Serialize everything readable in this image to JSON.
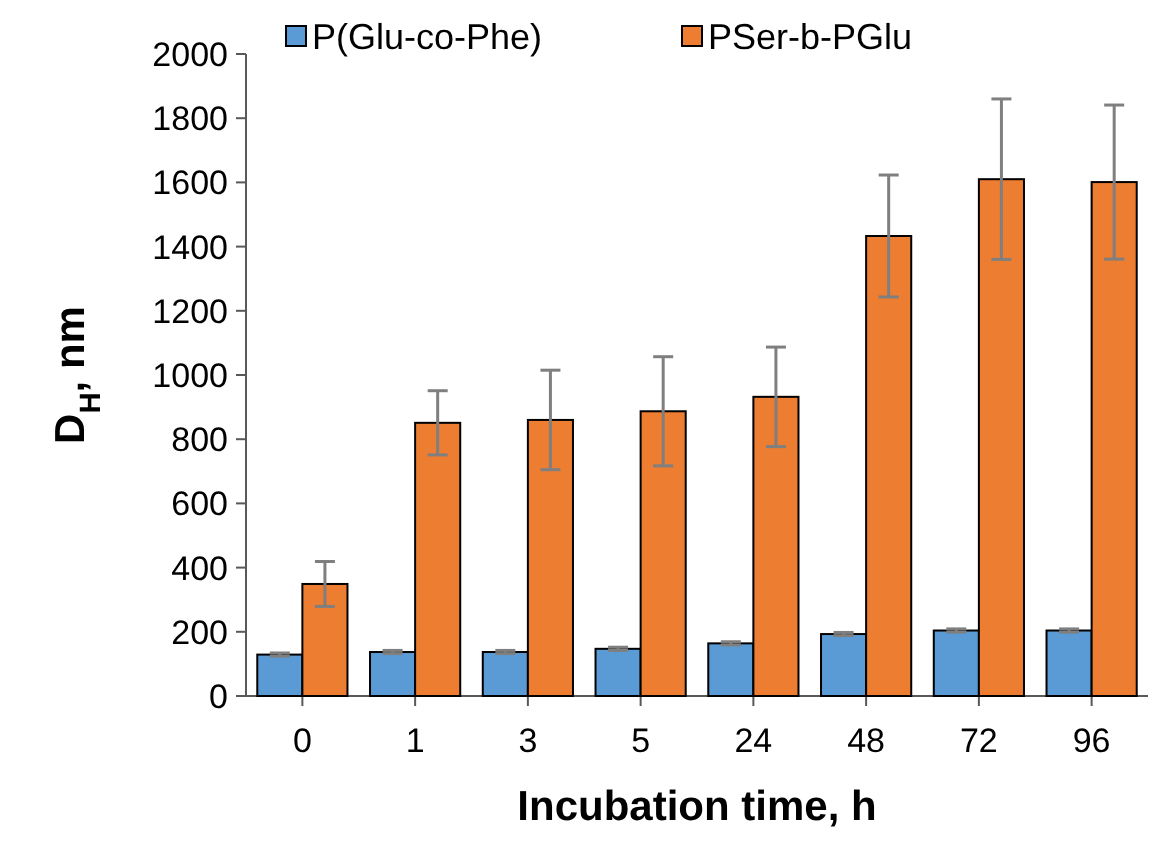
{
  "chart_data": {
    "type": "bar",
    "xlabel": "Incubation time, h",
    "ylabel": "D$_{H}$, nm",
    "categories": [
      "0",
      "1",
      "3",
      "5",
      "24",
      "48",
      "72",
      "96"
    ],
    "series": [
      {
        "name": "P(Glu-co-Phe)",
        "color": "#5b9bd5",
        "values": [
          129,
          137,
          137,
          147,
          164,
          193,
          204,
          204
        ],
        "errors": [
          5,
          5,
          5,
          5,
          5,
          5,
          5,
          5
        ]
      },
      {
        "name": "PSer-b-PGlu",
        "color": "#ed7d31",
        "values": [
          349,
          851,
          860,
          887,
          932,
          1433,
          1610,
          1601
        ],
        "errors": [
          70,
          100,
          155,
          170,
          155,
          190,
          250,
          240
        ]
      }
    ],
    "ylim": [
      0,
      2000
    ],
    "yticks": [
      0,
      200,
      400,
      600,
      800,
      1000,
      1200,
      1400,
      1600,
      1800,
      2000
    ],
    "grid": false,
    "legend": "top left"
  }
}
